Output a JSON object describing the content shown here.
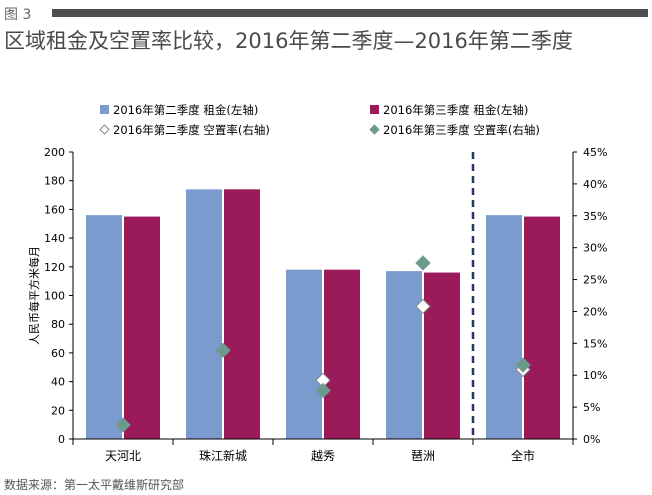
{
  "figure_label": "图 3",
  "title": "区域租金及空置率比较，2016年第二季度—2016年第二季度",
  "source": "数据来源：第一太平戴维斯研究部",
  "chart_data": {
    "type": "bar",
    "categories": [
      "天河北",
      "珠江新城",
      "越秀",
      "琶洲",
      "全市"
    ],
    "ylabel": "人民币每平方米每月",
    "ylim": [
      0,
      200
    ],
    "yticks": [
      "0",
      "20",
      "40",
      "60",
      "80",
      "100",
      "120",
      "140",
      "160",
      "180",
      "200"
    ],
    "y2lim": [
      0,
      45
    ],
    "y2ticks": [
      "0%",
      "5%",
      "10%",
      "15%",
      "20%",
      "25%",
      "30%",
      "35%",
      "40%",
      "45%"
    ],
    "legend_position": "top",
    "grid": false,
    "divider_after_category": "琶洲",
    "series": [
      {
        "name": "2016年第二季度 租金(左轴)",
        "kind": "bar",
        "axis": "left",
        "color": "#7b9bcf",
        "values": [
          156,
          174,
          118,
          117,
          156
        ]
      },
      {
        "name": "2016年第三季度 租金(左轴)",
        "kind": "bar",
        "axis": "left",
        "color": "#9b1b5a",
        "values": [
          155,
          174,
          118,
          116,
          155
        ]
      },
      {
        "name": "2016年第二季度 空置率(右轴)",
        "kind": "marker",
        "axis": "right",
        "color": "#ffffff",
        "values": [
          null,
          null,
          9.2,
          20.8,
          10.9
        ]
      },
      {
        "name": "2016年第三季度 空置率(右轴)",
        "kind": "marker",
        "axis": "right",
        "color": "#6a9a8a",
        "values": [
          2.2,
          13.9,
          7.6,
          27.6,
          11.6
        ]
      }
    ]
  }
}
